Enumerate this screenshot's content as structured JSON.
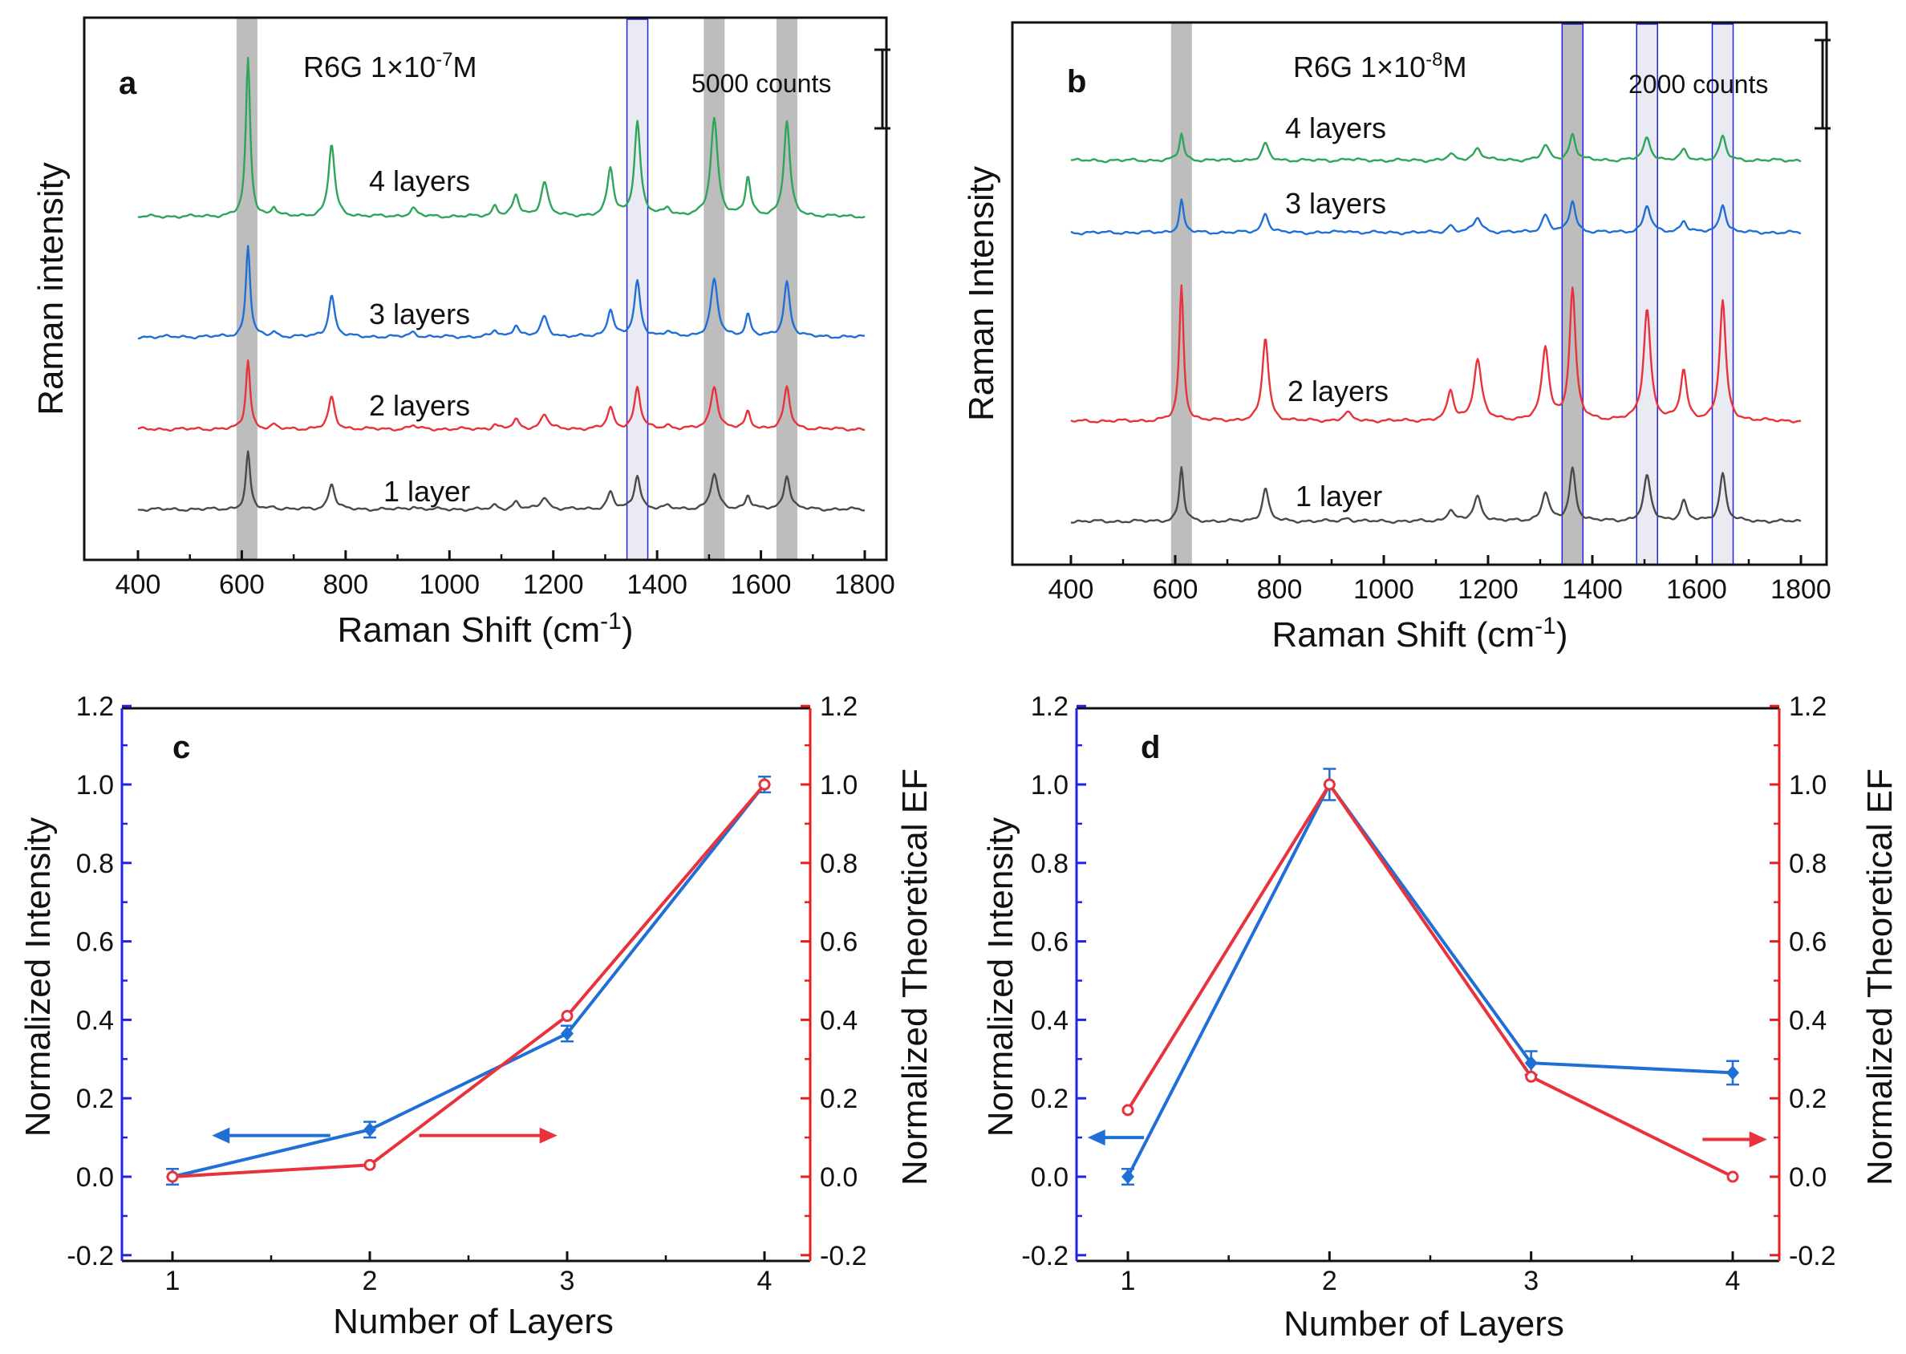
{
  "colors": {
    "green": "#2ea55a",
    "blue": "#1f6fd6",
    "red": "#e8323c",
    "black": "#4a4a4a",
    "shade": "#bdbdbd",
    "axis_blue": "#2323e6",
    "axis_red": "#e61e1e"
  },
  "chart_data": [
    {
      "panel_label": "a",
      "type": "line",
      "title": "R6G 1×10-7M",
      "title_base": "R6G 1×10",
      "title_exp": "-7",
      "title_unit": "M",
      "xlabel": "Raman Shift (cm",
      "xlabel_exp": "-1",
      "xlabel_close": ")",
      "ylabel": "Raman intensity",
      "xlim": [
        350,
        1850
      ],
      "xticks": [
        "400",
        "600",
        "800",
        "1000",
        "1200",
        "1400",
        "1600",
        "1800"
      ],
      "scale_bar": "5000 counts",
      "highlight_bands": [
        {
          "center": 610,
          "style": "gray"
        },
        {
          "center": 1362,
          "style": "blue"
        },
        {
          "center": 1510,
          "style": "gray"
        },
        {
          "center": 1650,
          "style": "gray"
        }
      ],
      "peaks": [
        {
          "x": 612,
          "w": 5,
          "h": 1.0
        },
        {
          "x": 662,
          "w": 5,
          "h": 0.06
        },
        {
          "x": 773,
          "w": 7,
          "h": 0.46
        },
        {
          "x": 930,
          "w": 8,
          "h": 0.05
        },
        {
          "x": 1088,
          "w": 6,
          "h": 0.07
        },
        {
          "x": 1128,
          "w": 7,
          "h": 0.13
        },
        {
          "x": 1183,
          "w": 8,
          "h": 0.22
        },
        {
          "x": 1310,
          "w": 7,
          "h": 0.3
        },
        {
          "x": 1362,
          "w": 7,
          "h": 0.6
        },
        {
          "x": 1420,
          "w": 8,
          "h": 0.05
        },
        {
          "x": 1510,
          "w": 8,
          "h": 0.62
        },
        {
          "x": 1575,
          "w": 6,
          "h": 0.24
        },
        {
          "x": 1650,
          "w": 7,
          "h": 0.6
        }
      ],
      "series": [
        {
          "name": "4 layers",
          "color": "green",
          "scale": 1.0,
          "label": "4 layers"
        },
        {
          "name": "3 layers",
          "color": "blue",
          "scale": 0.58,
          "label": "3 layers"
        },
        {
          "name": "2 layers",
          "color": "red",
          "scale": 0.44,
          "label": "2 layers"
        },
        {
          "name": "1 layer",
          "color": "black",
          "scale": 0.36,
          "label": "1 layer"
        }
      ]
    },
    {
      "panel_label": "b",
      "type": "line",
      "title": "R6G 1×10-8M",
      "title_base": "R6G 1×10",
      "title_exp": "-8",
      "title_unit": "M",
      "xlabel": "Raman Shift (cm",
      "xlabel_exp": "-1",
      "xlabel_close": ")",
      "ylabel": "Raman Intensity",
      "xlim": [
        350,
        1850
      ],
      "xticks": [
        "400",
        "600",
        "800",
        "1000",
        "1200",
        "1400",
        "1600",
        "1800"
      ],
      "scale_bar": "2000 counts",
      "highlight_bands": [
        {
          "center": 612,
          "style": "gray"
        },
        {
          "center": 1362,
          "style": "gray-blue"
        },
        {
          "center": 1505,
          "style": "blue"
        },
        {
          "center": 1650,
          "style": "blue"
        }
      ],
      "peaks": [
        {
          "x": 612,
          "w": 5,
          "h": 1.0
        },
        {
          "x": 773,
          "w": 7,
          "h": 0.62
        },
        {
          "x": 930,
          "w": 9,
          "h": 0.06
        },
        {
          "x": 1128,
          "w": 7,
          "h": 0.22
        },
        {
          "x": 1180,
          "w": 9,
          "h": 0.45
        },
        {
          "x": 1310,
          "w": 8,
          "h": 0.54
        },
        {
          "x": 1362,
          "w": 7,
          "h": 0.97
        },
        {
          "x": 1505,
          "w": 8,
          "h": 0.83
        },
        {
          "x": 1575,
          "w": 7,
          "h": 0.37
        },
        {
          "x": 1650,
          "w": 7,
          "h": 0.89
        }
      ],
      "series": [
        {
          "name": "4 layers",
          "color": "green",
          "scale": 0.2,
          "label": "4 layers"
        },
        {
          "name": "3 layers",
          "color": "blue",
          "scale": 0.24,
          "label": "3 layers"
        },
        {
          "name": "2 layers",
          "color": "red",
          "scale": 1.0,
          "label": "2 layers"
        },
        {
          "name": "1 layer",
          "color": "black",
          "scale": 0.4,
          "label": "1 layer"
        }
      ]
    },
    {
      "panel_label": "c",
      "type": "line",
      "xlabel": "Number of Layers",
      "ylabel_left": "Normalized Intensity",
      "ylabel_right": "Normalized Theoretical EF",
      "x": [
        1,
        2,
        3,
        4
      ],
      "xlim": [
        0.75,
        4.25
      ],
      "ylim": [
        -0.2,
        1.2
      ],
      "xticks": [
        "1",
        "2",
        "3",
        "4"
      ],
      "yticks": [
        "-0.2",
        "0.0",
        "0.2",
        "0.4",
        "0.6",
        "0.8",
        "1.0",
        "1.2"
      ],
      "series": [
        {
          "name": "Normalized Intensity",
          "axis": "left",
          "color": "blue",
          "values": [
            0.0,
            0.12,
            0.365,
            1.0
          ],
          "errors": [
            0.02,
            0.02,
            0.02,
            0.02
          ],
          "marker": "diamond"
        },
        {
          "name": "Normalized Theoretical EF",
          "axis": "right",
          "color": "red",
          "values": [
            0.0,
            0.03,
            0.41,
            1.0
          ],
          "marker": "circle"
        }
      ],
      "arrows": [
        {
          "color": "blue",
          "from": [
            1.8,
            0.105
          ],
          "to": [
            1.2,
            0.105
          ]
        },
        {
          "color": "red",
          "from": [
            2.25,
            0.105
          ],
          "to": [
            2.95,
            0.105
          ]
        }
      ]
    },
    {
      "panel_label": "d",
      "type": "line",
      "xlabel": "Number of Layers",
      "ylabel_left": "Normalized Intensity",
      "ylabel_right": "Normalized Theoretical EF",
      "x": [
        1,
        2,
        3,
        4
      ],
      "xlim": [
        0.75,
        4.25
      ],
      "ylim": [
        -0.2,
        1.2
      ],
      "xticks": [
        "1",
        "2",
        "3",
        "4"
      ],
      "yticks": [
        "-0.2",
        "0.0",
        "0.2",
        "0.4",
        "0.6",
        "0.8",
        "1.0",
        "1.2"
      ],
      "series": [
        {
          "name": "Normalized Intensity",
          "axis": "left",
          "color": "blue",
          "values": [
            0.0,
            1.0,
            0.29,
            0.265
          ],
          "errors": [
            0.02,
            0.04,
            0.03,
            0.03
          ],
          "marker": "diamond"
        },
        {
          "name": "Normalized Theoretical EF",
          "axis": "right",
          "color": "red",
          "values": [
            0.17,
            1.0,
            0.255,
            0.0
          ],
          "marker": "circle"
        }
      ],
      "arrows": [
        {
          "color": "blue",
          "from": [
            1.08,
            0.1
          ],
          "to": [
            0.8,
            0.1
          ]
        },
        {
          "color": "red",
          "from": [
            3.85,
            0.095
          ],
          "to": [
            4.17,
            0.095
          ]
        }
      ]
    }
  ]
}
